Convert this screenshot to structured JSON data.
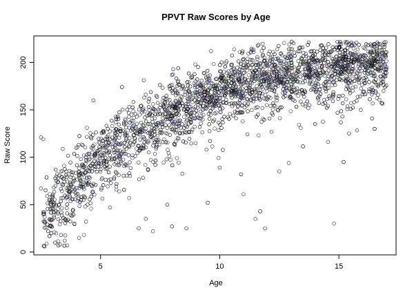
{
  "chart_data": {
    "type": "scatter",
    "title": "PPVT Raw Scores by Age",
    "xlabel": "Age",
    "ylabel": "Raw Score",
    "xlim": [
      2.2,
      17.4
    ],
    "ylim": [
      -3,
      228
    ],
    "x_ticks": [
      5,
      10,
      15
    ],
    "y_ticks": [
      0,
      50,
      100,
      150,
      200
    ],
    "grid": false,
    "legend": "none",
    "point_colors": [
      "#000000",
      "#1b1b1b",
      "#2a2a55",
      "#3d4a3d",
      "#4a3a5a"
    ],
    "trend_points": [
      [
        2.6,
        40
      ],
      [
        3.0,
        55
      ],
      [
        3.5,
        68
      ],
      [
        4.0,
        80
      ],
      [
        4.5,
        92
      ],
      [
        5.0,
        103
      ],
      [
        6.0,
        122
      ],
      [
        7.0,
        138
      ],
      [
        8.0,
        151
      ],
      [
        9.0,
        162
      ],
      [
        10.0,
        171
      ],
      [
        11.0,
        179
      ],
      [
        12.0,
        186
      ],
      [
        13.0,
        191
      ],
      [
        14.0,
        195
      ],
      [
        15.0,
        198
      ],
      [
        16.0,
        200
      ],
      [
        17.0,
        202
      ]
    ],
    "n_points": 2400,
    "outliers": [
      [
        2.5,
        121
      ],
      [
        2.6,
        119
      ],
      [
        2.5,
        67
      ],
      [
        2.6,
        42
      ],
      [
        2.8,
        22
      ],
      [
        2.9,
        28
      ],
      [
        3.1,
        10
      ],
      [
        3.3,
        8
      ],
      [
        3.5,
        12
      ],
      [
        3.6,
        7
      ],
      [
        3.9,
        30
      ],
      [
        4.1,
        15
      ],
      [
        4.3,
        18
      ],
      [
        4.7,
        160
      ],
      [
        5.4,
        47
      ],
      [
        5.9,
        174
      ],
      [
        6.2,
        57
      ],
      [
        6.6,
        25
      ],
      [
        6.9,
        35
      ],
      [
        7.2,
        22
      ],
      [
        7.8,
        50
      ],
      [
        8.0,
        27
      ],
      [
        8.6,
        25
      ],
      [
        9.5,
        52
      ],
      [
        10.0,
        89
      ],
      [
        10.9,
        82
      ],
      [
        11.0,
        61
      ],
      [
        11.5,
        35
      ],
      [
        11.7,
        43
      ],
      [
        11.9,
        25
      ],
      [
        12.5,
        85
      ],
      [
        12.9,
        94
      ],
      [
        13.4,
        131
      ],
      [
        14.0,
        135
      ],
      [
        14.8,
        30
      ],
      [
        15.2,
        95
      ],
      [
        16.8,
        157
      ],
      [
        16.5,
        130
      ]
    ]
  }
}
